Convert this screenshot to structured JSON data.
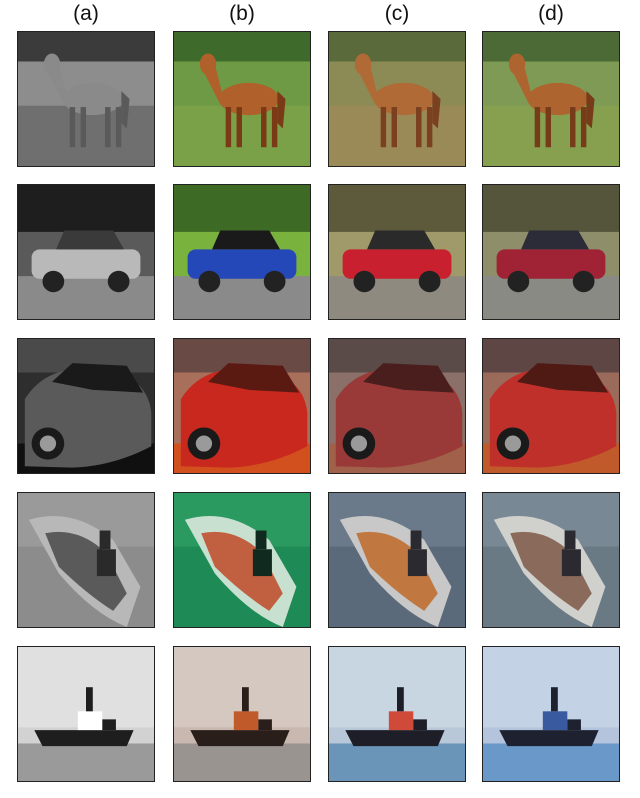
{
  "columns": [
    {
      "label": "(a)"
    },
    {
      "label": "(b)"
    },
    {
      "label": "(c)"
    },
    {
      "label": "(d)"
    }
  ],
  "rows": [
    {
      "subject": "horse",
      "palettes": [
        {
          "bg": "#8d8d8d",
          "ground": "#6f6f6f",
          "top": "#3b3b3b",
          "subject": "#8a8a8a",
          "accent": "#5a5a5a"
        },
        {
          "bg": "#6f9a45",
          "ground": "#7aa048",
          "top": "#3e6b2b",
          "subject": "#b0602a",
          "accent": "#7a3a15"
        },
        {
          "bg": "#8c8a55",
          "ground": "#9a8a58",
          "top": "#5b6a3a",
          "subject": "#b06a35",
          "accent": "#7a4020"
        },
        {
          "bg": "#7f9a55",
          "ground": "#86a050",
          "top": "#4c6a35",
          "subject": "#ad642f",
          "accent": "#763c19"
        }
      ]
    },
    {
      "subject": "car",
      "palettes": [
        {
          "bg": "#5a5a5a",
          "ground": "#8a8a8a",
          "top": "#1e1e1e",
          "subject": "#b9b9b9",
          "accent": "#3a3a3a"
        },
        {
          "bg": "#7ab23e",
          "ground": "#8a8a8a",
          "top": "#3d6b25",
          "subject": "#2448b8",
          "accent": "#1a1a1a"
        },
        {
          "bg": "#a09a6a",
          "ground": "#8e8a80",
          "top": "#5d5a3c",
          "subject": "#c8202e",
          "accent": "#2a2a2a"
        },
        {
          "bg": "#8f8e6a",
          "ground": "#8a8a84",
          "top": "#55553c",
          "subject": "#a02235",
          "accent": "#2c2c38"
        }
      ]
    },
    {
      "subject": "sports-car",
      "palettes": [
        {
          "bg": "#2e2e2e",
          "ground": "#101010",
          "top": "#4a4a4a",
          "subject": "#5a5a5a",
          "accent": "#1a1a1a"
        },
        {
          "bg": "#a8705a",
          "ground": "#d2501e",
          "top": "#6a4a45",
          "subject": "#c8281e",
          "accent": "#5a1a12"
        },
        {
          "bg": "#8a7068",
          "ground": "#a0604a",
          "top": "#5a4a48",
          "subject": "#9a3a38",
          "accent": "#4a1e1c"
        },
        {
          "bg": "#9a6a5a",
          "ground": "#c05a2a",
          "top": "#5e4644",
          "subject": "#c0302a",
          "accent": "#501a14"
        }
      ]
    },
    {
      "subject": "ship",
      "palettes": [
        {
          "bg": "#8c8c8c",
          "ground": "#b8b8b8",
          "top": "#9a9a9a",
          "subject": "#5a5a5a",
          "accent": "#2a2a2a"
        },
        {
          "bg": "#1e8a55",
          "ground": "#c8e0d0",
          "top": "#2a9a60",
          "subject": "#c06040",
          "accent": "#102a20"
        },
        {
          "bg": "#5a6a7a",
          "ground": "#c8c8c8",
          "top": "#6a7a8a",
          "subject": "#c07840",
          "accent": "#2a2a30"
        },
        {
          "bg": "#6a7a85",
          "ground": "#d0d0cc",
          "top": "#788894",
          "subject": "#8a6a5a",
          "accent": "#2a2a30"
        }
      ]
    },
    {
      "subject": "tugboat",
      "palettes": [
        {
          "bg": "#d2d2d2",
          "ground": "#9a9a9a",
          "top": "#e0e0e0",
          "subject": "#1e1e1e",
          "accent": "#ffffff"
        },
        {
          "bg": "#c8b8b0",
          "ground": "#9a9490",
          "top": "#d4c8c0",
          "subject": "#2a1e1a",
          "accent": "#c05a2a"
        },
        {
          "bg": "#b8c8d8",
          "ground": "#6a94b8",
          "top": "#c8d6e2",
          "subject": "#1e1e28",
          "accent": "#d04a3a"
        },
        {
          "bg": "#b4c4dc",
          "ground": "#6a98c8",
          "top": "#c4d2e6",
          "subject": "#1e2230",
          "accent": "#3a5aa0"
        }
      ]
    }
  ]
}
